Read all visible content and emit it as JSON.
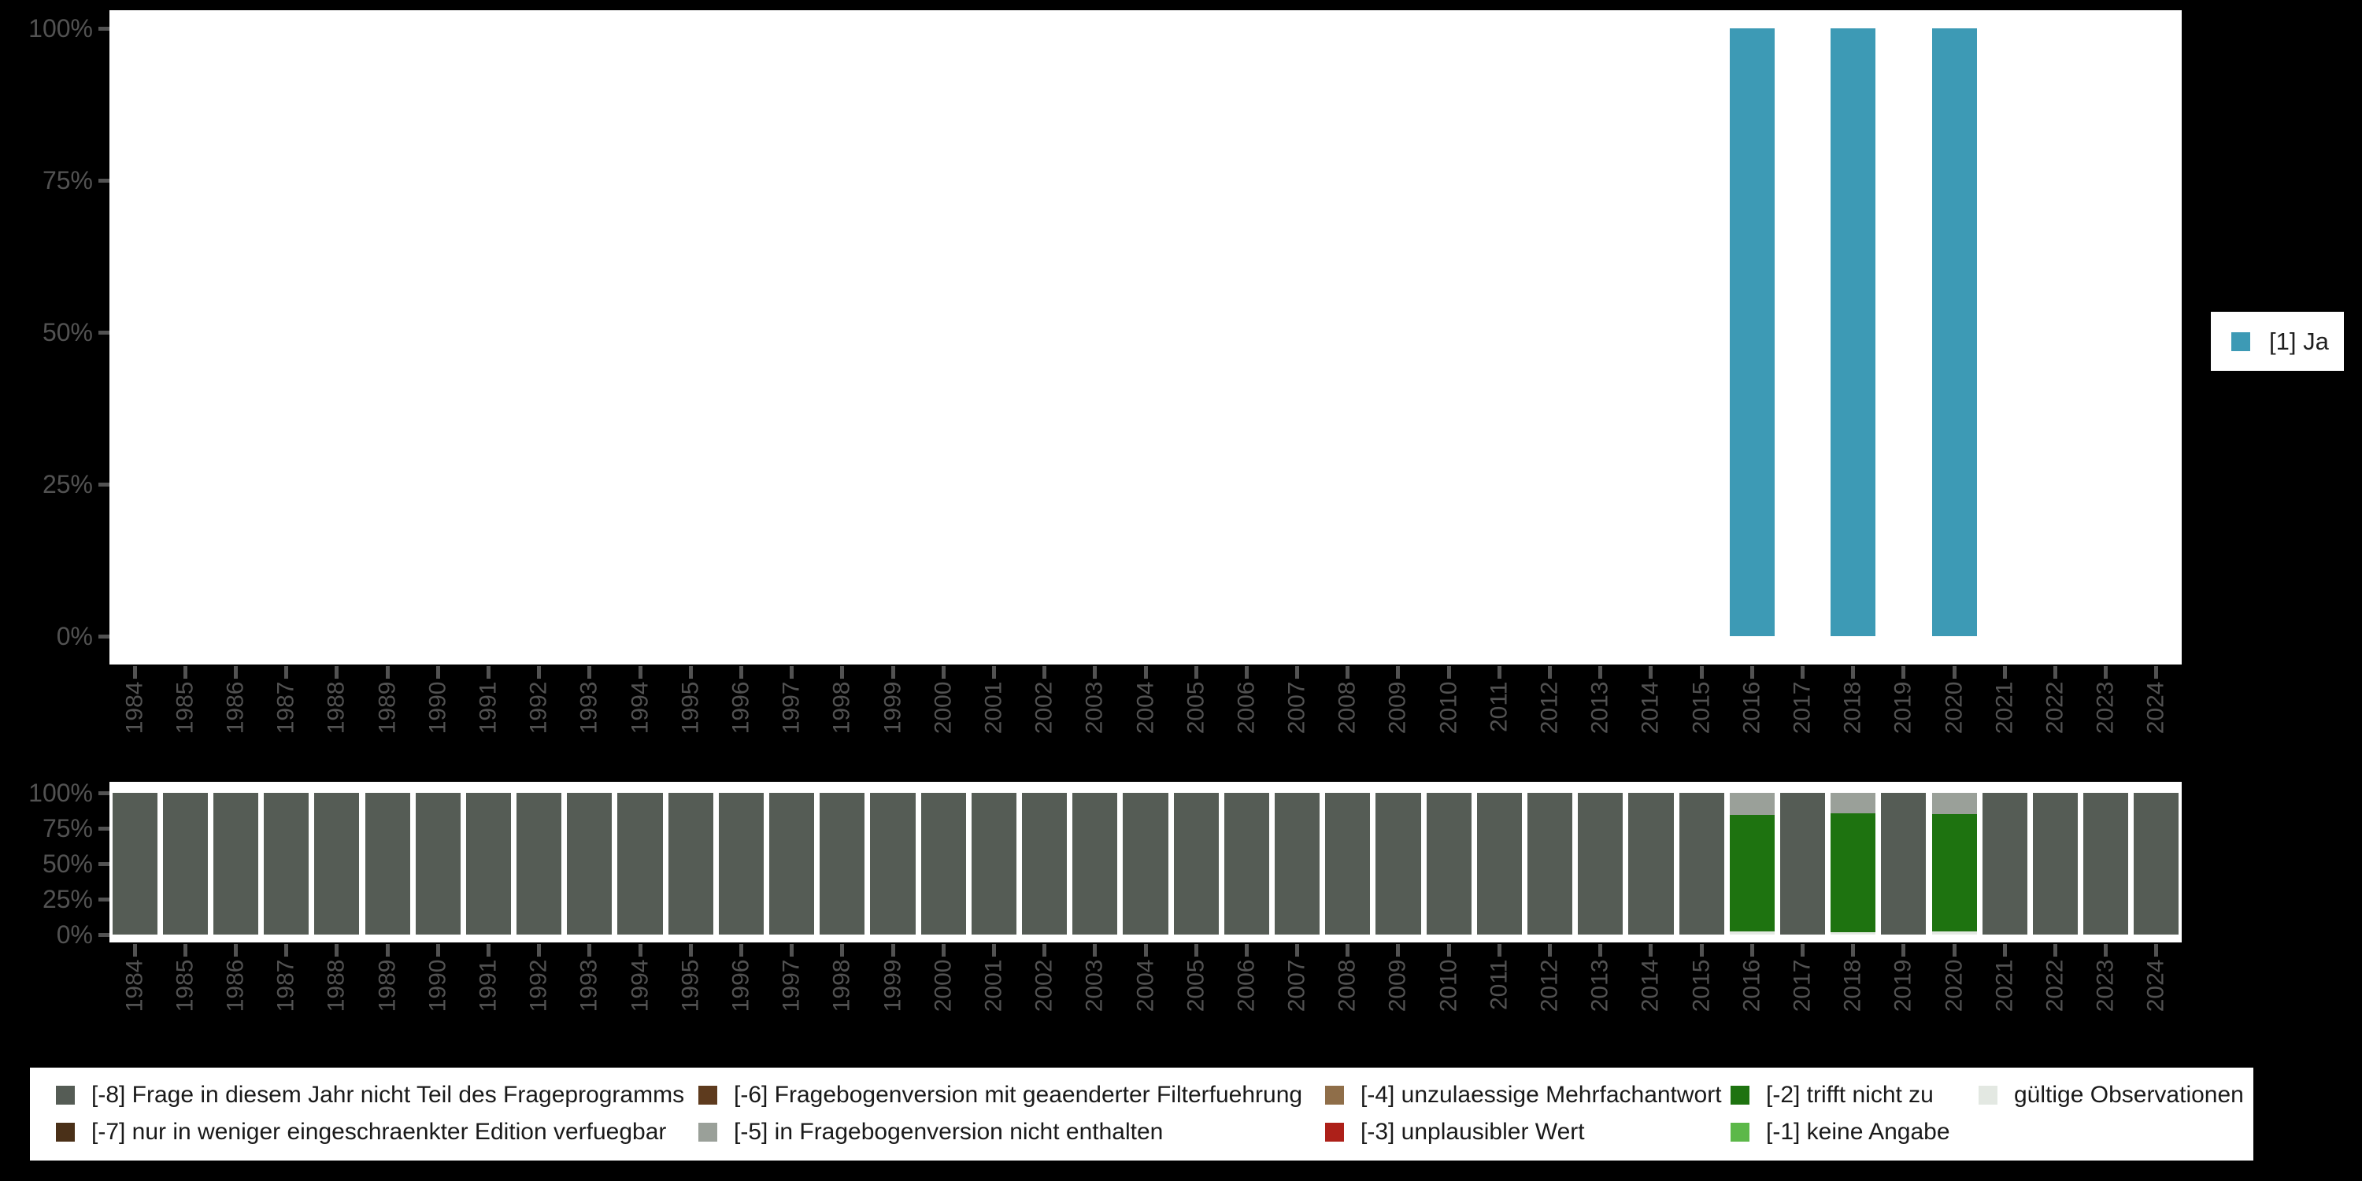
{
  "colors": {
    "background": "#000000",
    "plot_background": "#ffffff",
    "axis_text": "#525252",
    "legend_text": "#1a1a1a",
    "ja_teal": "#3d9ab5",
    "missing_8": "#555c55",
    "missing_7": "#4a3018",
    "missing_6": "#5e3b1e",
    "missing_5": "#9aa099",
    "missing_4": "#8f6e49",
    "missing_3": "#ad2019",
    "missing_2": "#1e7310",
    "missing_1": "#5cb849",
    "valid_obs": "#e3e8e2"
  },
  "chart_data": [
    {
      "type": "bar",
      "title": "",
      "xlabel": "",
      "ylabel": "",
      "ylim": [
        0,
        100
      ],
      "grid": false,
      "legend_position": "right",
      "y_ticks": [
        "0%",
        "25%",
        "50%",
        "75%",
        "100%"
      ],
      "categories": [
        "1984",
        "1985",
        "1986",
        "1987",
        "1988",
        "1989",
        "1990",
        "1991",
        "1992",
        "1993",
        "1994",
        "1995",
        "1996",
        "1997",
        "1998",
        "1999",
        "2000",
        "2001",
        "2002",
        "2003",
        "2004",
        "2005",
        "2006",
        "2007",
        "2008",
        "2009",
        "2010",
        "2011",
        "2012",
        "2013",
        "2014",
        "2015",
        "2016",
        "2017",
        "2018",
        "2019",
        "2020",
        "2021",
        "2022",
        "2023",
        "2024"
      ],
      "series": [
        {
          "name": "[1] Ja",
          "color": "#3d9ab5",
          "values": [
            0,
            0,
            0,
            0,
            0,
            0,
            0,
            0,
            0,
            0,
            0,
            0,
            0,
            0,
            0,
            0,
            0,
            0,
            0,
            0,
            0,
            0,
            0,
            0,
            0,
            0,
            0,
            0,
            0,
            0,
            0,
            0,
            100,
            0,
            100,
            0,
            100,
            0,
            0,
            0,
            0
          ]
        }
      ]
    },
    {
      "type": "bar",
      "stacked": true,
      "title": "",
      "xlabel": "",
      "ylabel": "",
      "ylim": [
        0,
        100
      ],
      "grid": false,
      "legend_position": "bottom",
      "y_ticks": [
        "0%",
        "25%",
        "50%",
        "75%",
        "100%"
      ],
      "categories": [
        "1984",
        "1985",
        "1986",
        "1987",
        "1988",
        "1989",
        "1990",
        "1991",
        "1992",
        "1993",
        "1994",
        "1995",
        "1996",
        "1997",
        "1998",
        "1999",
        "2000",
        "2001",
        "2002",
        "2003",
        "2004",
        "2005",
        "2006",
        "2007",
        "2008",
        "2009",
        "2010",
        "2011",
        "2012",
        "2013",
        "2014",
        "2015",
        "2016",
        "2017",
        "2018",
        "2019",
        "2020",
        "2021",
        "2022",
        "2023",
        "2024"
      ],
      "series": [
        {
          "code": "-8",
          "name": "[-8] Frage in diesem Jahr nicht Teil des Frageprogramms",
          "color": "#555c55",
          "values": [
            100,
            100,
            100,
            100,
            100,
            100,
            100,
            100,
            100,
            100,
            100,
            100,
            100,
            100,
            100,
            100,
            100,
            100,
            100,
            100,
            100,
            100,
            100,
            100,
            100,
            100,
            100,
            100,
            100,
            100,
            100,
            100,
            0,
            100,
            0,
            100,
            0,
            100,
            100,
            100,
            100
          ]
        },
        {
          "code": "-5",
          "name": "[-5] in Fragebogenversion nicht enthalten",
          "color": "#9aa099",
          "values": [
            0,
            0,
            0,
            0,
            0,
            0,
            0,
            0,
            0,
            0,
            0,
            0,
            0,
            0,
            0,
            0,
            0,
            0,
            0,
            0,
            0,
            0,
            0,
            0,
            0,
            0,
            0,
            0,
            0,
            0,
            0,
            0,
            15.5,
            0,
            14.5,
            0,
            15,
            0,
            0,
            0,
            0
          ]
        },
        {
          "code": "-2",
          "name": "[-2] trifft nicht zu",
          "color": "#1e7310",
          "values": [
            0,
            0,
            0,
            0,
            0,
            0,
            0,
            0,
            0,
            0,
            0,
            0,
            0,
            0,
            0,
            0,
            0,
            0,
            0,
            0,
            0,
            0,
            0,
            0,
            0,
            0,
            0,
            0,
            0,
            0,
            0,
            0,
            82.5,
            0,
            84,
            0,
            82.5,
            0,
            0,
            0,
            0
          ]
        },
        {
          "code": "valid",
          "name": "gültige Observationen",
          "color": "#e3e8e2",
          "values": [
            0,
            0,
            0,
            0,
            0,
            0,
            0,
            0,
            0,
            0,
            0,
            0,
            0,
            0,
            0,
            0,
            0,
            0,
            0,
            0,
            0,
            0,
            0,
            0,
            0,
            0,
            0,
            0,
            0,
            0,
            0,
            0,
            2,
            0,
            1.5,
            0,
            2.5,
            0,
            0,
            0,
            0
          ]
        }
      ]
    }
  ],
  "legend_ja": {
    "label": "[1] Ja",
    "color": "#3d9ab5"
  },
  "legend_bottom": {
    "items": [
      {
        "code": "-8",
        "label": "[-8] Frage in diesem Jahr nicht Teil des Frageprogramms",
        "color": "#555c55"
      },
      {
        "code": "-7",
        "label": "[-7] nur in weniger eingeschraenkter Edition verfuegbar",
        "color": "#4a3018"
      },
      {
        "code": "-6",
        "label": "[-6] Fragebogenversion mit geaenderter Filterfuehrung",
        "color": "#5e3b1e"
      },
      {
        "code": "-5",
        "label": "[-5] in Fragebogenversion nicht enthalten",
        "color": "#9aa099"
      },
      {
        "code": "-4",
        "label": "[-4] unzulaessige Mehrfachantwort",
        "color": "#8f6e49"
      },
      {
        "code": "-3",
        "label": "[-3] unplausibler Wert",
        "color": "#ad2019"
      },
      {
        "code": "-2",
        "label": "[-2] trifft nicht zu",
        "color": "#1e7310"
      },
      {
        "code": "-1",
        "label": "[-1] keine Angabe",
        "color": "#5cb849"
      },
      {
        "code": "valid",
        "label": "gültige Observationen",
        "color": "#e3e8e2"
      }
    ]
  }
}
